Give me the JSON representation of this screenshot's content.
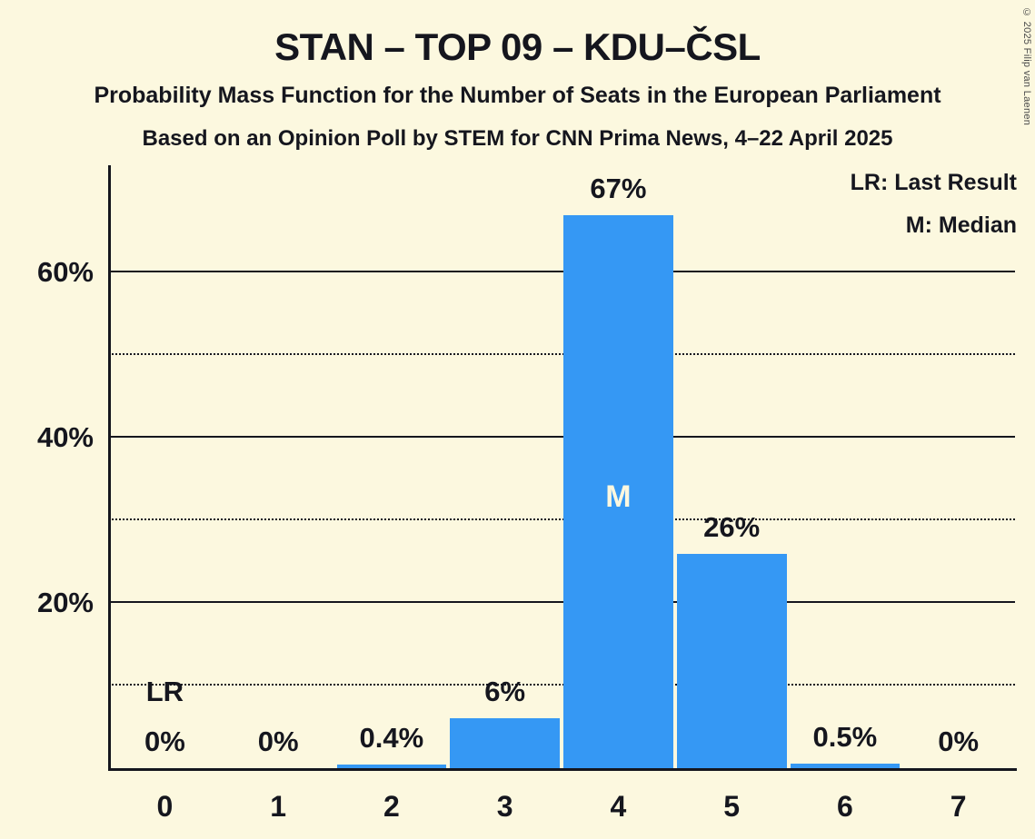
{
  "chart": {
    "copyright": "© 2025 Filip van Laenen",
    "background_color": "#FCF8DF",
    "text_color": "#15161E",
    "bar_color": "#3598F4",
    "median_text_color": "#FCF8DF"
  },
  "chart_data": {
    "type": "bar",
    "title": "STAN – TOP 09 – KDU–ČSL",
    "subtitle": "Probability Mass Function for the Number of Seats in the European Parliament",
    "source_line": "Based on an Opinion Poll by STEM for CNN Prima News, 4–22 April 2025",
    "categories": [
      "0",
      "1",
      "2",
      "3",
      "4",
      "5",
      "6",
      "7"
    ],
    "values": [
      0,
      0,
      0.4,
      6,
      67,
      26,
      0.5,
      0
    ],
    "value_labels": [
      "0%",
      "0%",
      "0.4%",
      "6%",
      "67%",
      "26%",
      "0.5%",
      "0%"
    ],
    "ylim": [
      0,
      73
    ],
    "major_yticks": [
      20,
      40,
      60
    ],
    "major_ytick_labels": [
      "20%",
      "40%",
      "60%"
    ],
    "minor_yticks": [
      10,
      30,
      50
    ],
    "grid": "horizontal",
    "legend_position": "top-right",
    "legend": [
      {
        "label": "LR: Last Result"
      },
      {
        "label": "M: Median"
      }
    ],
    "annotations": [
      {
        "type": "last-result",
        "label": "LR",
        "seat_index": 0
      },
      {
        "type": "median",
        "label": "M",
        "seat_index": 4
      }
    ]
  }
}
